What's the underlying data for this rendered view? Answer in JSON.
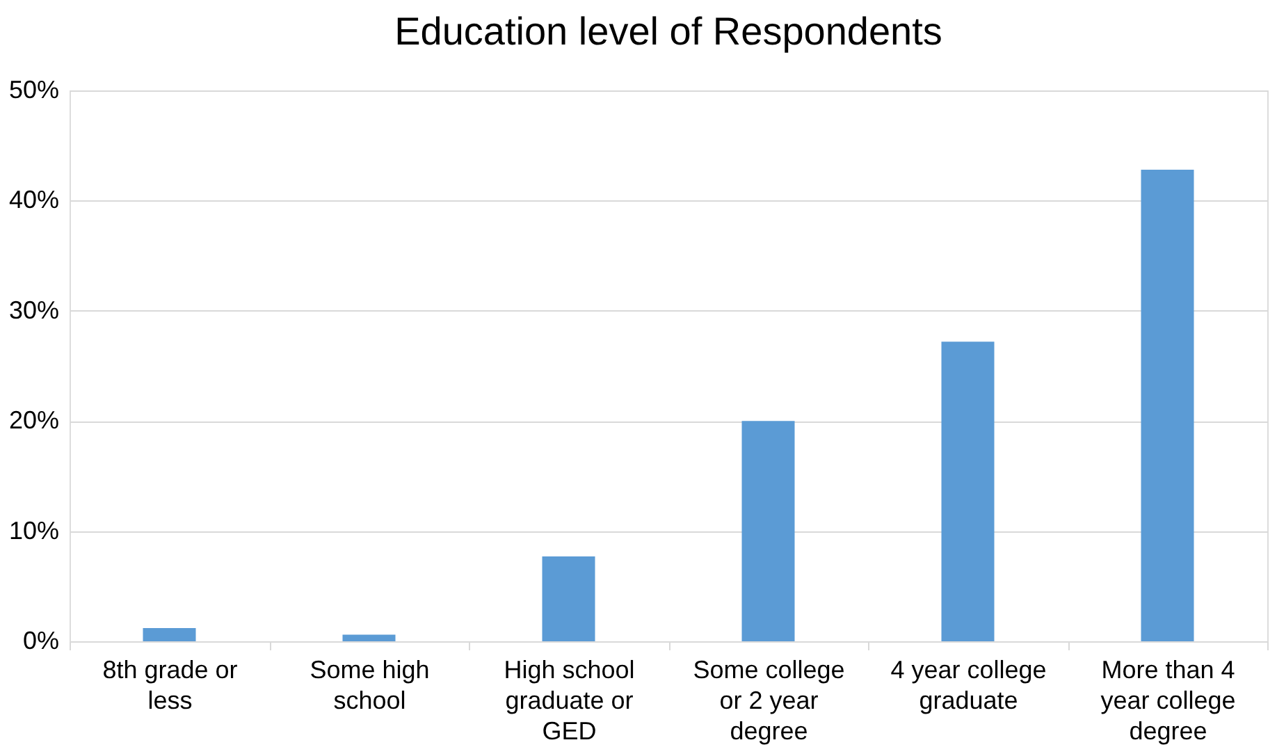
{
  "chart_data": {
    "type": "bar",
    "title": "Education level of Respondents",
    "categories": [
      "8th grade or less",
      "Some high school",
      "High school graduate or GED",
      "Some college or 2 year degree",
      "4 year college graduate",
      "More than 4 year college degree"
    ],
    "values": [
      1.2,
      0.6,
      7.7,
      20.0,
      27.2,
      42.8
    ],
    "color": "#5b9bd5",
    "ylim": [
      0,
      50
    ],
    "yticks": [
      {
        "value": 0,
        "label": "0%"
      },
      {
        "value": 10,
        "label": "10%"
      },
      {
        "value": 20,
        "label": "20%"
      },
      {
        "value": 30,
        "label": "30%"
      },
      {
        "value": 40,
        "label": "40%"
      },
      {
        "value": 50,
        "label": "50%"
      }
    ],
    "grid": "y"
  }
}
